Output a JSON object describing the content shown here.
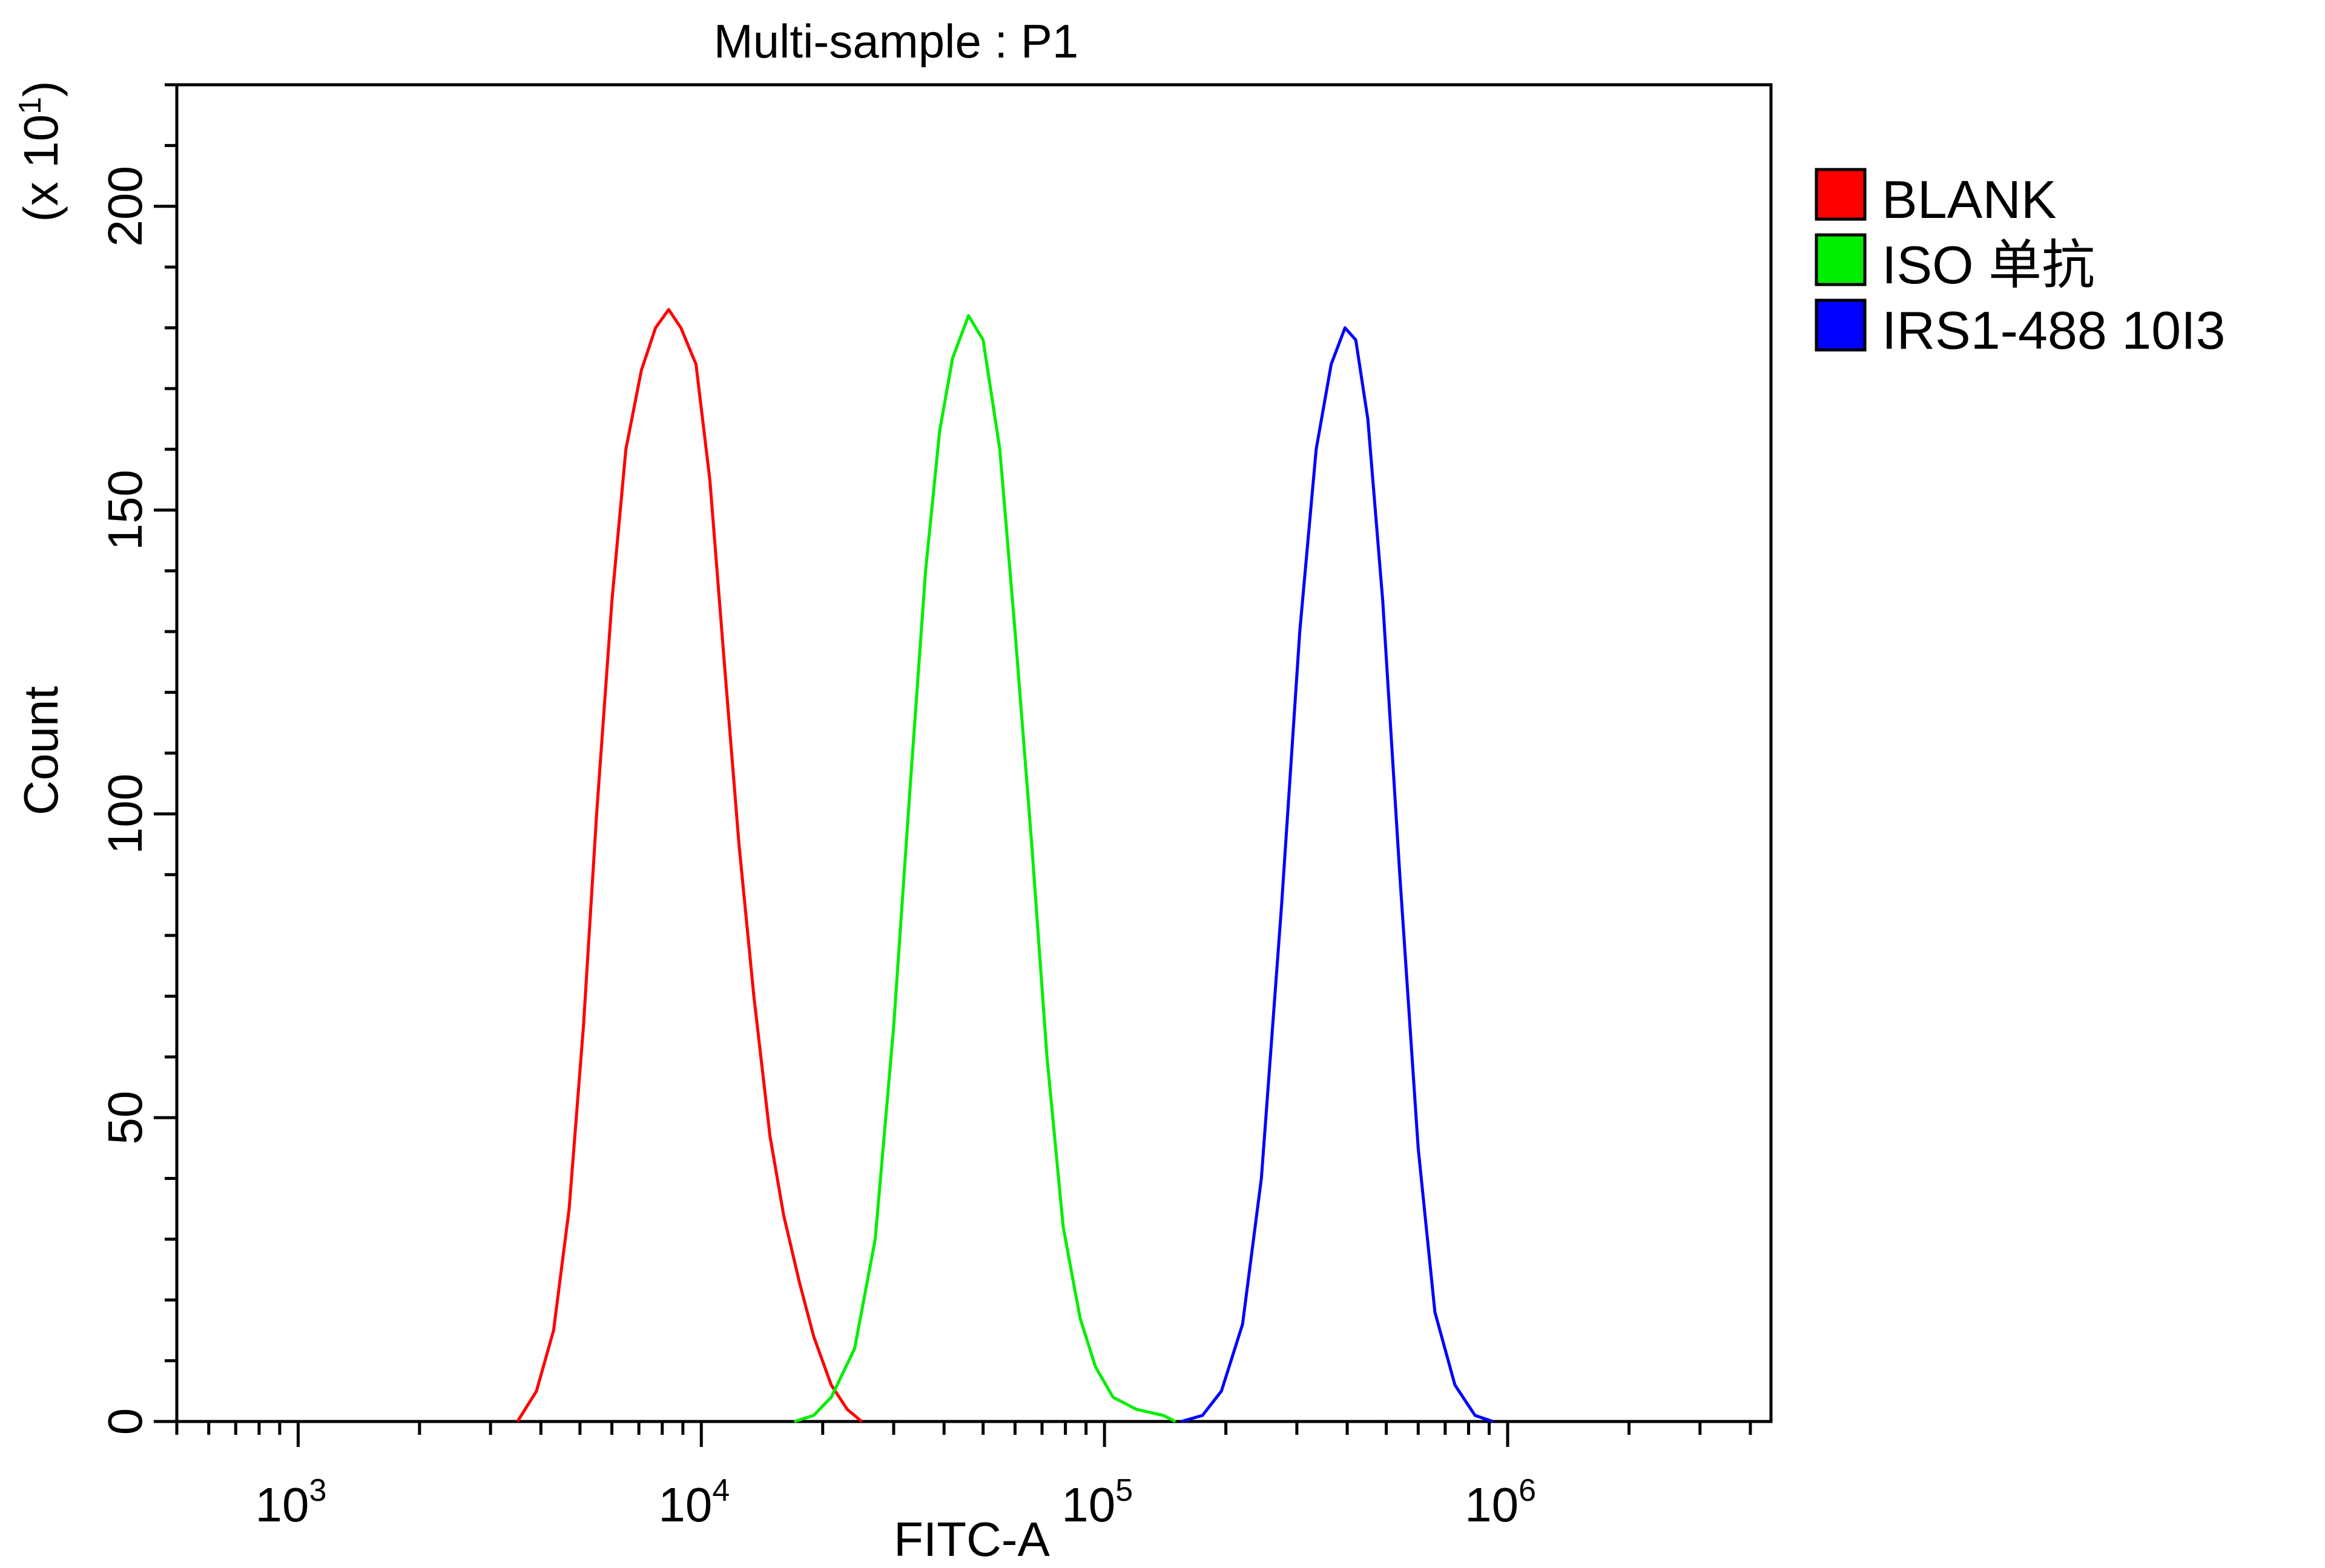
{
  "chart_data": {
    "type": "line",
    "title": "Multi-sample : P1",
    "xlabel": "FITC-A",
    "ylabel": "Count",
    "ylabel_multiplier": "(x 10",
    "ylabel_multiplier_exp": "1",
    "ylabel_multiplier_close": ")",
    "x_scale": "log",
    "xlim": [
      500,
      4500000
    ],
    "ylim": [
      0,
      220
    ],
    "x_ticks": [
      {
        "value": 1000,
        "base": "10",
        "exp": "3"
      },
      {
        "value": 10000,
        "base": "10",
        "exp": "4"
      },
      {
        "value": 100000,
        "base": "10",
        "exp": "5"
      },
      {
        "value": 1000000,
        "base": "10",
        "exp": "6"
      }
    ],
    "y_ticks": [
      {
        "value": 0,
        "label": "0"
      },
      {
        "value": 50,
        "label": "50"
      },
      {
        "value": 100,
        "label": "100"
      },
      {
        "value": 150,
        "label": "150"
      },
      {
        "value": 200,
        "label": "200"
      }
    ],
    "grid": false,
    "legend_position": "right",
    "series": [
      {
        "name": "BLANK",
        "color": "#ff0000",
        "points": [
          [
            3500,
            0
          ],
          [
            3900,
            5
          ],
          [
            4300,
            15
          ],
          [
            4700,
            35
          ],
          [
            5100,
            65
          ],
          [
            5500,
            100
          ],
          [
            6000,
            135
          ],
          [
            6500,
            160
          ],
          [
            7100,
            173
          ],
          [
            7700,
            180
          ],
          [
            8300,
            183
          ],
          [
            8900,
            180
          ],
          [
            9700,
            174
          ],
          [
            10500,
            155
          ],
          [
            11400,
            125
          ],
          [
            12400,
            95
          ],
          [
            13500,
            70
          ],
          [
            14800,
            47
          ],
          [
            16000,
            34
          ],
          [
            17500,
            23
          ],
          [
            19000,
            14
          ],
          [
            21000,
            6
          ],
          [
            23000,
            2
          ],
          [
            25000,
            0
          ]
        ]
      },
      {
        "name": "ISO 单抗",
        "color": "#00ee00",
        "points": [
          [
            17000,
            0
          ],
          [
            19000,
            1
          ],
          [
            21000,
            4
          ],
          [
            24000,
            12
          ],
          [
            27000,
            30
          ],
          [
            30000,
            65
          ],
          [
            33000,
            105
          ],
          [
            36000,
            140
          ],
          [
            39000,
            163
          ],
          [
            42000,
            175
          ],
          [
            46000,
            182
          ],
          [
            50000,
            178
          ],
          [
            55000,
            160
          ],
          [
            60000,
            130
          ],
          [
            66000,
            95
          ],
          [
            72000,
            60
          ],
          [
            79000,
            32
          ],
          [
            87000,
            17
          ],
          [
            95000,
            9
          ],
          [
            105000,
            4
          ],
          [
            120000,
            2
          ],
          [
            140000,
            1
          ],
          [
            150000,
            0
          ]
        ]
      },
      {
        "name": "IRS1-488 10I3",
        "color": "#0000ff",
        "points": [
          [
            155000,
            0
          ],
          [
            175000,
            1
          ],
          [
            195000,
            5
          ],
          [
            220000,
            16
          ],
          [
            245000,
            40
          ],
          [
            275000,
            85
          ],
          [
            305000,
            130
          ],
          [
            335000,
            160
          ],
          [
            365000,
            174
          ],
          [
            395000,
            180
          ],
          [
            420000,
            178
          ],
          [
            450000,
            165
          ],
          [
            490000,
            135
          ],
          [
            540000,
            90
          ],
          [
            600000,
            45
          ],
          [
            660000,
            18
          ],
          [
            740000,
            6
          ],
          [
            830000,
            1
          ],
          [
            920000,
            0
          ]
        ]
      }
    ]
  }
}
